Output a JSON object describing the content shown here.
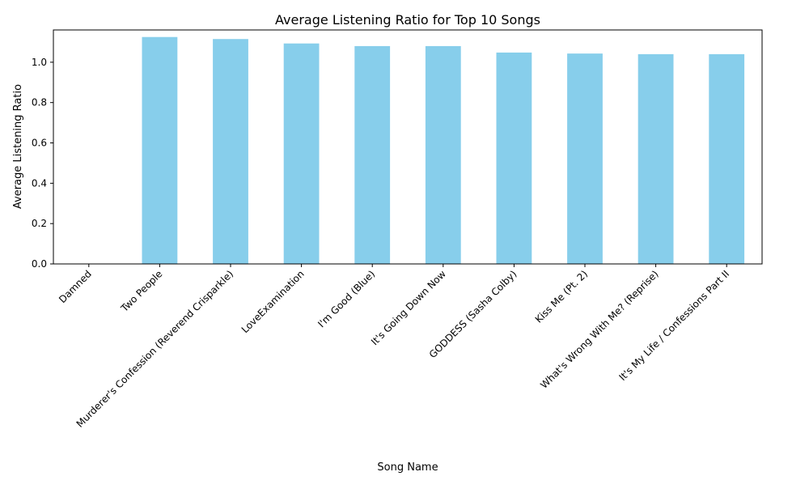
{
  "chart_data": {
    "type": "bar",
    "title": "Average Listening Ratio for Top 10 Songs",
    "xlabel": "Song Name",
    "ylabel": "Average Listening Ratio",
    "categories": [
      "Damned",
      "Two People",
      "Murderer's Confession (Reverend Crisparkle)",
      "LoveExamination",
      "I'm Good (Blue)",
      "It's Going Down Now",
      "GODDESS (Sasha Colby)",
      "Kiss Me (Pt. 2)",
      "What's Wrong With Me? (Reprise)",
      "It's My Life / Confessions Part II"
    ],
    "values": [
      0,
      1.125,
      1.115,
      1.093,
      1.08,
      1.08,
      1.048,
      1.043,
      1.04,
      1.04
    ],
    "ylim": [
      0,
      1.16
    ],
    "yticks": [
      "0.0",
      "0.2",
      "0.4",
      "0.6",
      "0.8",
      "1.0"
    ],
    "bar_color": "#87ceeb",
    "grid": false,
    "legend": "none"
  }
}
